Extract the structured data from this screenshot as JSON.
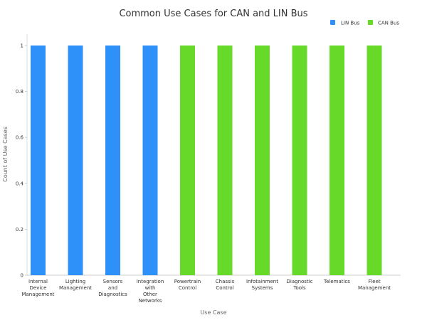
{
  "chart_data": {
    "type": "bar",
    "title": "Common Use Cases for CAN and LIN Bus",
    "xlabel": "Use Case",
    "ylabel": "Count of Use Cases",
    "ylim": [
      0,
      1
    ],
    "yticks": [
      "0",
      "0.2",
      "0.4",
      "0.6",
      "0.8",
      "1"
    ],
    "grid": false,
    "legend_position": "top-right",
    "categories": [
      "Internal Device Management",
      "Lighting Management",
      "Sensors and Diagnostics",
      "Integration with Other Networks",
      "Powertrain Control",
      "Chassis Control",
      "Infotainment Systems",
      "Diagnostic Tools",
      "Telematics",
      "Fleet Management"
    ],
    "category_label_lines": [
      [
        "Internal",
        "Device",
        "Management"
      ],
      [
        "Lighting",
        "Management"
      ],
      [
        "Sensors",
        "and",
        "Diagnostics"
      ],
      [
        "Integration",
        "with",
        "Other",
        "Networks"
      ],
      [
        "Powertrain",
        "Control"
      ],
      [
        "Chassis",
        "Control"
      ],
      [
        "Infotainment",
        "Systems"
      ],
      [
        "Diagnostic",
        "Tools"
      ],
      [
        "Telematics"
      ],
      [
        "Fleet",
        "Management"
      ]
    ],
    "series": [
      {
        "name": "LIN Bus",
        "color": "#2e91fa",
        "values": [
          1,
          1,
          1,
          1,
          0,
          0,
          0,
          0,
          0,
          0
        ]
      },
      {
        "name": "CAN Bus",
        "color": "#66d929",
        "values": [
          0,
          0,
          0,
          0,
          1,
          1,
          1,
          1,
          1,
          1
        ]
      }
    ]
  }
}
